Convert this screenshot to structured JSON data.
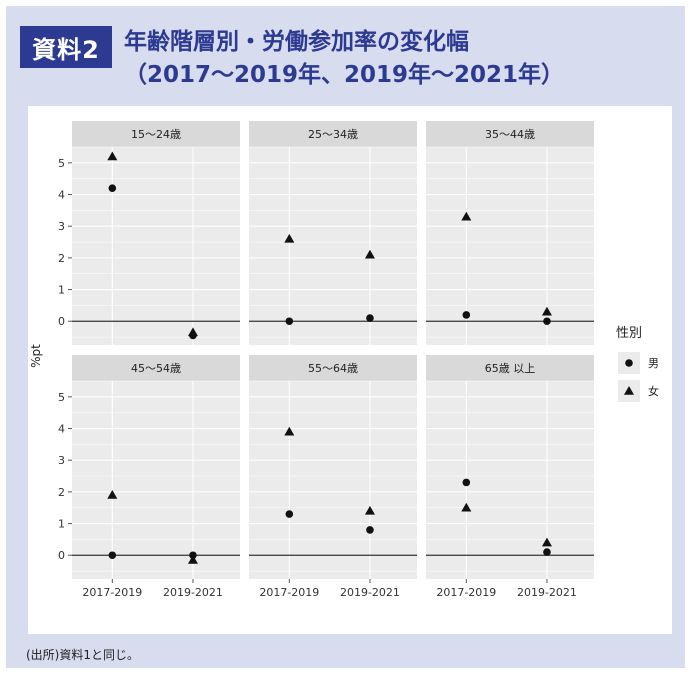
{
  "header": {
    "badge": "資料2",
    "title_line1": "年齢階層別・労働参加率の変化幅",
    "title_line2": "（2017～2019年、2019年～2021年）"
  },
  "footer": {
    "source": "(出所)資料1と同じ。"
  },
  "chart_data": {
    "type": "scatter",
    "ylabel": "%pt",
    "ylim": [
      -0.75,
      5.5
    ],
    "yticks": [
      0,
      1,
      2,
      3,
      4,
      5
    ],
    "categories": [
      "2017-2019",
      "2019-2021"
    ],
    "reference_line": 0,
    "legend": {
      "title": "性別",
      "placement": "right",
      "entries": [
        {
          "name": "男",
          "marker": "circle"
        },
        {
          "name": "女",
          "marker": "triangle"
        }
      ]
    },
    "panels": [
      {
        "label": "15～24歳",
        "male": [
          4.2,
          -0.45
        ],
        "female": [
          5.2,
          -0.35
        ]
      },
      {
        "label": "25～34歳",
        "male": [
          0.0,
          0.1
        ],
        "female": [
          2.6,
          2.1
        ]
      },
      {
        "label": "35～44歳",
        "male": [
          0.2,
          0.0
        ],
        "female": [
          3.3,
          0.3
        ]
      },
      {
        "label": "45～54歳",
        "male": [
          0.0,
          0.0
        ],
        "female": [
          1.9,
          -0.15
        ]
      },
      {
        "label": "55～64歳",
        "male": [
          1.3,
          0.8
        ],
        "female": [
          3.9,
          1.4
        ]
      },
      {
        "label": "65歳 以上",
        "male": [
          2.3,
          0.1
        ],
        "female": [
          1.5,
          0.4
        ]
      }
    ],
    "colors": {
      "panel_bg": "#ebebeb",
      "strip_bg": "#d9d9d9",
      "grid": "#ffffff",
      "marker": "#111111"
    }
  }
}
